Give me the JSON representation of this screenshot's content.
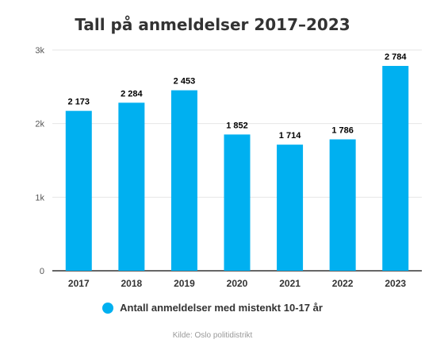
{
  "chart_data": {
    "type": "bar",
    "title": "Tall på anmeldelser 2017–2023",
    "categories": [
      "2017",
      "2018",
      "2019",
      "2020",
      "2021",
      "2022",
      "2023"
    ],
    "series": [
      {
        "name": "Antall anmeldelser med mistenkt 10-17 år",
        "values": [
          2173,
          2284,
          2453,
          1852,
          1714,
          1786,
          2784
        ],
        "labels": [
          "2 173",
          "2 284",
          "2 453",
          "1 852",
          "1 714",
          "1 786",
          "2 784"
        ],
        "color": "#00b0f0"
      }
    ],
    "ylim": [
      0,
      3000
    ],
    "yticks": [
      {
        "value": 0,
        "label": "0"
      },
      {
        "value": 1000,
        "label": "1k"
      },
      {
        "value": 2000,
        "label": "2k"
      },
      {
        "value": 3000,
        "label": "3k"
      }
    ],
    "grid": true,
    "legend_position": "bottom",
    "source": "Kilde: Oslo politidistrikt"
  }
}
